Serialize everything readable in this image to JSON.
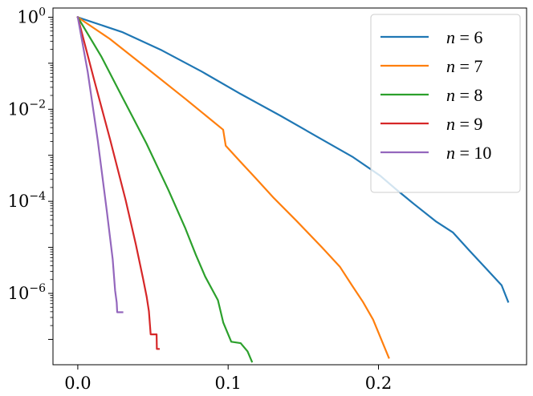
{
  "chart_data": {
    "type": "line",
    "title": "",
    "xlabel": "",
    "ylabel": "",
    "xlim": [
      -0.0165,
      0.2985
    ],
    "ylim_log10": [
      -7.55,
      0.2
    ],
    "y_scale": "log",
    "grid": false,
    "legend_position": "top-right",
    "x_ticks": [
      {
        "value": 0.0,
        "label": "0.0"
      },
      {
        "value": 0.1,
        "label": "0.1"
      },
      {
        "value": 0.2,
        "label": "0.2"
      }
    ],
    "y_ticks": [
      {
        "value": 1,
        "base": "10",
        "exp": "0"
      },
      {
        "value": 0.01,
        "base": "10",
        "exp": "−2"
      },
      {
        "value": 0.0001,
        "base": "10",
        "exp": "−4"
      },
      {
        "value": 1e-06,
        "base": "10",
        "exp": "−6"
      }
    ],
    "series": [
      {
        "name": "n = 6",
        "name_var": "n",
        "name_val": "6",
        "color": "#1f77b4",
        "points": [
          [
            0.0,
            1.0
          ],
          [
            0.0294,
            0.4786
          ],
          [
            0.0559,
            0.1905
          ],
          [
            0.0824,
            0.0661
          ],
          [
            0.1085,
            0.0214
          ],
          [
            0.1349,
            0.0072
          ],
          [
            0.1605,
            0.0024
          ],
          [
            0.1831,
            0.00091
          ],
          [
            0.2011,
            0.00036
          ],
          [
            0.2119,
            0.00018
          ],
          [
            0.2241,
            8.5e-05
          ],
          [
            0.2385,
            3.6e-05
          ],
          [
            0.2496,
            2.1e-05
          ],
          [
            0.2605,
            8.5e-06
          ],
          [
            0.2708,
            3.7e-06
          ],
          [
            0.2819,
            1.5e-06
          ],
          [
            0.2862,
            6.6e-07
          ]
        ]
      },
      {
        "name": "n = 7",
        "name_var": "n",
        "name_val": "7",
        "color": "#ff7f0e",
        "points": [
          [
            0.0,
            1.0
          ],
          [
            0.0213,
            0.3388
          ],
          [
            0.0453,
            0.0811
          ],
          [
            0.0718,
            0.0166
          ],
          [
            0.0967,
            0.0036
          ],
          [
            0.0984,
            0.00162
          ],
          [
            0.1079,
            0.00074
          ],
          [
            0.1183,
            0.00032
          ],
          [
            0.1305,
            0.000117
          ],
          [
            0.1454,
            3.8e-05
          ],
          [
            0.1627,
            9.8e-06
          ],
          [
            0.1743,
            3.8e-06
          ],
          [
            0.1823,
            1.5e-06
          ],
          [
            0.1897,
            6.5e-07
          ],
          [
            0.1964,
            2.7e-07
          ],
          [
            0.2069,
            4e-08
          ]
        ]
      },
      {
        "name": "n = 8",
        "name_var": "n",
        "name_val": "8",
        "color": "#2ca02c",
        "points": [
          [
            0.0,
            1.0
          ],
          [
            0.0156,
            0.1413
          ],
          [
            0.0303,
            0.0166
          ],
          [
            0.0457,
            0.0018
          ],
          [
            0.0602,
            0.000178
          ],
          [
            0.0713,
            2.69e-05
          ],
          [
            0.0786,
            6.8e-06
          ],
          [
            0.0848,
            2.3e-06
          ],
          [
            0.0932,
            7.1e-07
          ],
          [
            0.0968,
            2.3e-07
          ],
          [
            0.1021,
            8.9e-08
          ],
          [
            0.1083,
            8.3e-08
          ],
          [
            0.1129,
            5.5e-08
          ],
          [
            0.1158,
            3.3e-08
          ]
        ]
      },
      {
        "name": "n = 9",
        "name_var": "n",
        "name_val": "9",
        "color": "#d62728",
        "points": [
          [
            0.0,
            1.0
          ],
          [
            0.0108,
            0.0447
          ],
          [
            0.0215,
            0.0022
          ],
          [
            0.0318,
            0.000107
          ],
          [
            0.0386,
            1.17e-05
          ],
          [
            0.0434,
            2.1e-06
          ],
          [
            0.0458,
            8.5e-07
          ],
          [
            0.0473,
            4.1e-07
          ],
          [
            0.0485,
            1.29e-07
          ],
          [
            0.0524,
            1.29e-07
          ],
          [
            0.0526,
            6.2e-08
          ],
          [
            0.0539,
            6.2e-08
          ]
        ]
      },
      {
        "name": "n = 10",
        "name_var": "n",
        "name_val": "10",
        "color": "#9467bd",
        "points": [
          [
            0.0,
            1.0
          ],
          [
            0.0066,
            0.0646
          ],
          [
            0.0133,
            0.00209
          ],
          [
            0.0193,
            6.1e-05
          ],
          [
            0.0232,
            5.5e-06
          ],
          [
            0.0248,
            1.15e-06
          ],
          [
            0.0259,
            6.3e-07
          ],
          [
            0.0262,
            3.9e-07
          ],
          [
            0.0297,
            3.9e-07
          ]
        ]
      }
    ]
  }
}
